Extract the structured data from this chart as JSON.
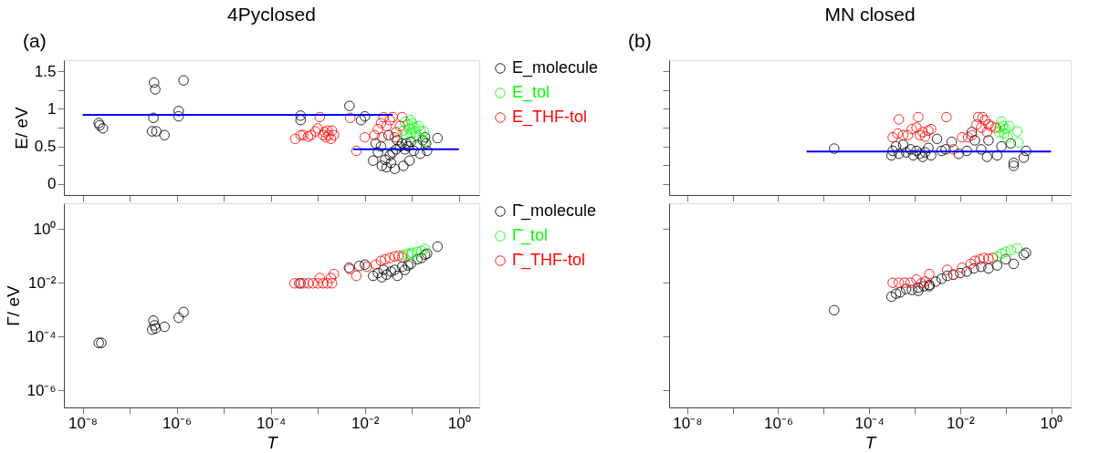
{
  "chart_data": [
    {
      "type": "scatter",
      "title": "4Pyclosed",
      "annotations": [
        "(a)"
      ],
      "ylabel": "E/ eV",
      "log": "x",
      "tick_labels": "y",
      "marker": "circle",
      "grid": false,
      "legend": "right",
      "xlim": [
        4e-09,
        2.7
      ],
      "ylim": [
        -0.15,
        1.65
      ],
      "xticks": [
        {
          "value": 1e-08,
          "label": null
        },
        {
          "value": 1e-07,
          "label": null
        },
        {
          "value": 1e-06,
          "label": null
        },
        {
          "value": 1e-05,
          "label": null
        },
        {
          "value": 0.0001,
          "label": null
        },
        {
          "value": 0.001,
          "label": null
        },
        {
          "value": 0.01,
          "label": null
        },
        {
          "value": 0.1,
          "label": null
        },
        {
          "value": 1,
          "label": null
        }
      ],
      "yticks": [
        0,
        {
          "value": 0.25,
          "label": null
        },
        0.5,
        {
          "value": 0.75,
          "label": null
        },
        1,
        {
          "value": 1.25,
          "label": null
        },
        1.5
      ],
      "series": [
        {
          "name": "E_molecule",
          "color": "#000000",
          "x": [
            2.2e-08,
            2.3e-08,
            2.7e-08,
            3.3e-07,
            3.5e-07,
            3.2e-07,
            3e-07,
            3.7e-07,
            5.5e-07,
            1.1e-06,
            1.1e-06,
            1.4e-06,
            0.00043,
            0.00043,
            0.0047,
            0.0083,
            0.01,
            0.015,
            0.019,
            0.022,
            0.023,
            0.027,
            0.029,
            0.034,
            0.036,
            0.043,
            0.046,
            0.049,
            0.056,
            0.062,
            0.066,
            0.071,
            0.076,
            0.083,
            0.089,
            0.095,
            0.11,
            0.13,
            0.15,
            0.17,
            0.19,
            0.2,
            0.21,
            0.35,
            0.032,
            0.017,
            0.039
          ],
          "values": [
            0.81,
            0.78,
            0.74,
            1.35,
            1.26,
            0.88,
            0.7,
            0.7,
            0.65,
            0.97,
            0.9,
            1.38,
            0.91,
            0.85,
            1.04,
            0.85,
            0.9,
            0.31,
            0.42,
            0.5,
            0.24,
            0.32,
            0.22,
            0.38,
            0.28,
            0.2,
            0.46,
            0.58,
            0.5,
            0.54,
            0.24,
            0.46,
            0.54,
            0.5,
            0.31,
            0.56,
            0.44,
            0.52,
            0.4,
            0.58,
            0.62,
            0.54,
            0.44,
            0.61,
            0.65,
            0.54,
            0.42
          ]
        },
        {
          "name": "E_tol",
          "color": "#00ff00",
          "x": [
            0.071,
            0.083,
            0.089,
            0.095,
            0.076,
            0.1,
            0.11,
            0.12,
            0.13,
            0.14,
            0.15,
            0.18,
            0.19,
            0.066,
            0.095
          ],
          "values": [
            0.83,
            0.79,
            0.73,
            0.67,
            0.65,
            0.81,
            0.75,
            0.69,
            0.62,
            0.77,
            0.71,
            0.7,
            0.56,
            0.71,
            0.85
          ]
        },
        {
          "name": "E_THF-tol",
          "color": "#ff0000",
          "x": [
            0.00033,
            0.00043,
            0.00049,
            0.00062,
            0.00071,
            0.00089,
            0.001,
            0.0011,
            0.0013,
            0.0014,
            0.0015,
            0.0016,
            0.0017,
            0.0019,
            0.002,
            0.0022,
            0.0049,
            0.0066,
            0.01,
            0.016,
            0.019,
            0.022,
            0.025,
            0.029,
            0.034,
            0.039,
            0.043,
            0.046,
            0.056,
            0.062,
            0.023
          ],
          "values": [
            0.6,
            0.65,
            0.65,
            0.63,
            0.65,
            0.7,
            0.74,
            0.89,
            0.65,
            0.69,
            0.62,
            0.71,
            0.65,
            0.6,
            0.71,
            0.65,
            0.88,
            0.44,
            0.62,
            0.65,
            0.73,
            0.81,
            0.89,
            0.77,
            0.85,
            0.89,
            0.62,
            0.69,
            0.77,
            0.89,
            0.62
          ]
        },
        {
          "type": "line",
          "marker": "none",
          "line_style": "solid",
          "color": "#0000ff",
          "x": [
            1e-08,
            0.039
          ],
          "values": [
            0.92,
            0.92
          ]
        },
        {
          "type": "line",
          "marker": "none",
          "line_style": "solid",
          "color": "#0000ff",
          "x": [
            0.0056,
            1
          ],
          "values": [
            0.46,
            0.46
          ]
        }
      ]
    },
    {
      "type": "scatter",
      "xlabel": "T",
      "ylabel": "Γ/ eV",
      "log": "xy",
      "marker": "circle",
      "grid": false,
      "legend": "right",
      "xlim": [
        4e-09,
        2.7
      ],
      "ylim": [
        2.3e-07,
        9
      ],
      "xticks": [
        {
          "value": 1e-08,
          "label": "10⁻⁸"
        },
        {
          "value": 1e-07,
          "label": null
        },
        {
          "value": 1e-06,
          "label": "10⁻⁶"
        },
        {
          "value": 1e-05,
          "label": null
        },
        {
          "value": 0.0001,
          "label": "10⁻⁴"
        },
        {
          "value": 0.001,
          "label": null
        },
        {
          "value": 0.01,
          "label": "10⁻²"
        },
        {
          "value": 0.1,
          "label": null
        },
        {
          "value": 1,
          "label": "10⁰"
        }
      ],
      "yticks": [
        {
          "value": 1e-06,
          "label": "10⁻⁶"
        },
        {
          "value": 0.0001,
          "label": "10⁻⁴"
        },
        {
          "value": 0.01,
          "label": "10⁻²"
        },
        {
          "value": 1,
          "label": "10⁰"
        }
      ],
      "series": [
        {
          "name": "Γ̄_molecule",
          "color": "#000000",
          "x": [
            2.2e-08,
            2.5e-08,
            3.2e-07,
            3.4e-07,
            3e-07,
            3.6e-07,
            5.5e-07,
            1.1e-06,
            1.4e-06,
            0.00043,
            0.0046,
            0.0076,
            0.01,
            0.015,
            0.019,
            0.023,
            0.029,
            0.036,
            0.049,
            0.062,
            0.083,
            0.095,
            0.13,
            0.16,
            0.19,
            0.21,
            0.35,
            0.043,
            0.025,
            0.071
          ],
          "values": [
            5.8e-05,
            5.8e-05,
            0.00039,
            0.00026,
            0.00018,
            0.0002,
            0.00023,
            0.0005,
            0.00081,
            0.0095,
            0.036,
            0.042,
            0.047,
            0.018,
            0.023,
            0.016,
            0.02,
            0.026,
            0.018,
            0.039,
            0.044,
            0.05,
            0.074,
            0.083,
            0.11,
            0.12,
            0.22,
            0.03,
            0.03,
            0.03
          ]
        },
        {
          "name": "Γ̄_tol",
          "color": "#00ff00",
          "x": [
            0.066,
            0.083,
            0.1,
            0.13,
            0.16,
            0.19,
            0.095
          ],
          "values": [
            0.11,
            0.12,
            0.13,
            0.14,
            0.15,
            0.18,
            0.11
          ]
        },
        {
          "name": "Γ̄_THF-tol",
          "color": "#ff0000",
          "x": [
            0.00032,
            0.0004,
            0.0005,
            0.00063,
            0.00079,
            0.001,
            0.0013,
            0.0016,
            0.002,
            0.0011,
            0.0019,
            0.0022,
            0.0048,
            0.0066,
            0.011,
            0.017,
            0.022,
            0.027,
            0.034,
            0.043,
            0.052,
            0.062
          ],
          "values": [
            0.0095,
            0.0095,
            0.0095,
            0.0095,
            0.0095,
            0.0095,
            0.0095,
            0.0095,
            0.0095,
            0.015,
            0.015,
            0.021,
            0.032,
            0.018,
            0.039,
            0.047,
            0.065,
            0.074,
            0.083,
            0.095,
            0.1,
            0.091
          ]
        }
      ]
    },
    {
      "type": "scatter",
      "title": "MN closed",
      "annotations": [
        "(b)"
      ],
      "log": "x",
      "tick_labels": false,
      "marker": "circle",
      "grid": false,
      "xlim": [
        4e-09,
        2.7
      ],
      "ylim": [
        -0.15,
        1.65
      ],
      "xticks": [
        {
          "value": 1e-08,
          "label": null
        },
        {
          "value": 1e-07,
          "label": null
        },
        {
          "value": 1e-06,
          "label": null
        },
        {
          "value": 1e-05,
          "label": null
        },
        {
          "value": 0.0001,
          "label": null
        },
        {
          "value": 0.001,
          "label": null
        },
        {
          "value": 0.01,
          "label": null
        },
        {
          "value": 0.1,
          "label": null
        },
        {
          "value": 1,
          "label": null
        }
      ],
      "yticks": [
        {
          "value": 0,
          "label": null
        },
        {
          "value": 0.25,
          "label": null
        },
        {
          "value": 0.5,
          "label": null
        },
        {
          "value": 0.75,
          "label": null
        },
        {
          "value": 1,
          "label": null
        },
        {
          "value": 1.25,
          "label": null
        },
        {
          "value": 1.5,
          "label": null
        }
      ],
      "series": [
        {
          "color": "#000000",
          "x": [
            1.7e-05,
            0.00031,
            0.00033,
            0.00039,
            0.00045,
            0.00056,
            0.00065,
            0.00081,
            0.00093,
            0.0011,
            0.0013,
            0.0015,
            0.0017,
            0.002,
            0.0023,
            0.0031,
            0.0039,
            0.0048,
            0.0065,
            0.0093,
            0.014,
            0.018,
            0.021,
            0.029,
            0.039,
            0.042,
            0.065,
            0.081,
            0.13,
            0.15,
            0.15,
            0.25,
            0.28
          ],
          "values": [
            0.47,
            0.38,
            0.44,
            0.5,
            0.4,
            0.52,
            0.42,
            0.46,
            0.38,
            0.44,
            0.4,
            0.36,
            0.42,
            0.48,
            0.38,
            0.6,
            0.44,
            0.46,
            0.56,
            0.4,
            0.44,
            0.69,
            0.58,
            0.46,
            0.36,
            0.58,
            0.38,
            0.5,
            0.54,
            0.24,
            0.28,
            0.35,
            0.44
          ]
        },
        {
          "color": "#00ff00",
          "x": [
            0.071,
            0.081,
            0.087,
            0.093,
            0.1,
            0.11,
            0.12,
            0.074,
            0.18,
            0.19
          ],
          "values": [
            0.69,
            0.83,
            0.77,
            0.67,
            0.73,
            0.62,
            0.77,
            0.75,
            0.7,
            0.55
          ]
        },
        {
          "color": "#ff0000",
          "x": [
            0.00033,
            0.00042,
            0.00045,
            0.00056,
            0.00071,
            0.00087,
            0.0011,
            0.0012,
            0.0013,
            0.0015,
            0.0017,
            0.002,
            0.0023,
            0.005,
            0.0071,
            0.011,
            0.015,
            0.018,
            0.023,
            0.025,
            0.029,
            0.031,
            0.035,
            0.039,
            0.042,
            0.048,
            0.06
          ],
          "values": [
            0.62,
            0.67,
            0.86,
            0.65,
            0.65,
            0.73,
            0.75,
            0.89,
            0.65,
            0.69,
            0.63,
            0.71,
            0.73,
            0.89,
            0.46,
            0.62,
            0.62,
            0.65,
            0.79,
            0.89,
            0.75,
            0.89,
            0.85,
            0.69,
            0.79,
            0.77,
            0.75
          ]
        },
        {
          "type": "line",
          "marker": "none",
          "line_style": "solid",
          "color": "#0000ff",
          "x": [
            4.2e-06,
            1
          ],
          "values": [
            0.43,
            0.43
          ]
        }
      ]
    },
    {
      "type": "scatter",
      "xlabel": "T",
      "log": "xy",
      "tick_labels": "x",
      "marker": "circle",
      "grid": false,
      "xlim": [
        4e-09,
        2.7
      ],
      "ylim": [
        2.3e-07,
        9
      ],
      "xticks": [
        {
          "value": 1e-08,
          "label": "10⁻⁸"
        },
        {
          "value": 1e-07,
          "label": null
        },
        {
          "value": 1e-06,
          "label": "10⁻⁶"
        },
        {
          "value": 1e-05,
          "label": null
        },
        {
          "value": 0.0001,
          "label": "10⁻⁴"
        },
        {
          "value": 0.001,
          "label": null
        },
        {
          "value": 0.01,
          "label": "10⁻²"
        },
        {
          "value": 0.1,
          "label": null
        },
        {
          "value": 1,
          "label": "10⁰"
        }
      ],
      "yticks": [
        {
          "value": 1e-06,
          "label": null
        },
        {
          "value": 0.0001,
          "label": null
        },
        {
          "value": 0.01,
          "label": null
        },
        {
          "value": 1,
          "label": null
        }
      ],
      "series": [
        {
          "color": "#000000",
          "x": [
            1.7e-05,
            0.00031,
            0.00039,
            0.00048,
            0.00065,
            0.00087,
            0.0012,
            0.0016,
            0.0021,
            0.0029,
            0.0039,
            0.0052,
            0.0071,
            0.01,
            0.014,
            0.02,
            0.029,
            0.042,
            0.065,
            0.1,
            0.15,
            0.25,
            0.28,
            0.0012,
            0.0021
          ],
          "values": [
            0.00095,
            0.003,
            0.0039,
            0.0044,
            0.0058,
            0.0054,
            0.0065,
            0.0074,
            0.0083,
            0.011,
            0.014,
            0.018,
            0.02,
            0.023,
            0.026,
            0.034,
            0.039,
            0.034,
            0.044,
            0.074,
            0.05,
            0.11,
            0.13,
            0.005,
            0.0074
          ]
        },
        {
          "color": "#00ff00",
          "x": [
            0.065,
            0.081,
            0.1,
            0.13,
            0.18
          ],
          "values": [
            0.095,
            0.12,
            0.14,
            0.16,
            0.19
          ]
        },
        {
          "color": "#ff0000",
          "x": [
            0.00033,
            0.00045,
            0.0006,
            0.00081,
            0.0011,
            0.0014,
            0.0017,
            0.0021,
            0.0052,
            0.0071,
            0.011,
            0.017,
            0.021,
            0.027,
            0.033,
            0.042,
            0.052
          ],
          "values": [
            0.01,
            0.01,
            0.01,
            0.01,
            0.013,
            0.0095,
            0.011,
            0.021,
            0.03,
            0.02,
            0.036,
            0.05,
            0.065,
            0.074,
            0.083,
            0.078,
            0.083
          ]
        }
      ]
    }
  ]
}
